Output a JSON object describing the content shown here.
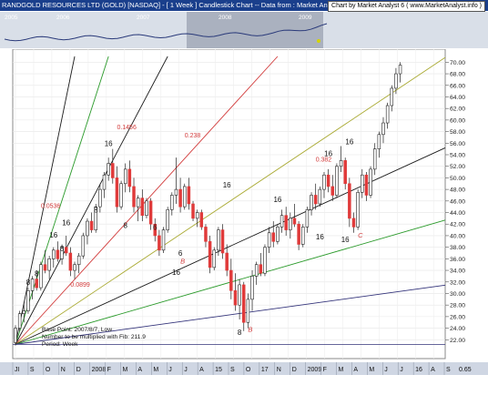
{
  "header": {
    "title": "RANDGOLD RESOURCES LTD (GOLD) [NASDAQ] - [ 1 Week ] Candlestick Chart -- Data from : Market Analyst",
    "credit": "Chart by Market Analyst 6 ( www.MarketAnalyst.info )"
  },
  "overview": {
    "year_labels": [
      "2005",
      "2006",
      "2007",
      "2008",
      "2009"
    ]
  },
  "colors": {
    "up_candle": "#ffffff",
    "down_candle": "#e03a3a",
    "fan_dark": "#1a1a1a",
    "fan_green": "#2a9a2a",
    "fan_red": "#d23a3a",
    "fan_olive": "#aaaa33",
    "fan_blue": "#33337a",
    "title_bar": "#1a3f8c"
  },
  "chart_data": {
    "type": "candlestick",
    "title": "",
    "y_axis": {
      "min": 20,
      "max": 71,
      "ticks": [
        "70.00",
        "68.00",
        "66.00",
        "64.00",
        "62.00",
        "60.00",
        "58.00",
        "56.00",
        "54.00",
        "52.00",
        "50.00",
        "48.00",
        "46.00",
        "44.00",
        "42.00",
        "40.00",
        "38.00",
        "36.00",
        "34.00",
        "32.00",
        "30.00",
        "28.00",
        "26.00",
        "24.00",
        "22.00"
      ]
    },
    "x_axis": {
      "labels": [
        "JI",
        "S",
        "O",
        "N",
        "D",
        "2008",
        "F",
        "M",
        "A",
        "M",
        "J",
        "J",
        "A",
        "15",
        "S",
        "O",
        "17",
        "N",
        "D",
        "2009",
        "F",
        "M",
        "A",
        "M",
        "J",
        "J",
        "16",
        "A",
        "S"
      ],
      "right_value": "0.65"
    },
    "weeks": 102,
    "fan_base": {
      "week": 0,
      "price": 21.2
    },
    "fan_lines": [
      {
        "ratio": "1/8",
        "color_key": "fan_dark",
        "end_price": 71,
        "end_week": 14
      },
      {
        "ratio": "1/4",
        "color_key": "fan_green",
        "end_price": 71,
        "end_week": 22
      },
      {
        "ratio": "1/3",
        "color_key": "fan_dark",
        "end_price": 71,
        "end_week": 36
      },
      {
        "ratio": "1/2",
        "color_key": "fan_red",
        "end_price": 71,
        "end_week": 62
      },
      {
        "ratio": "1/1",
        "color_key": "fan_olive",
        "end_price": 71,
        "end_week": 102
      },
      {
        "ratio": "2/1",
        "color_key": "fan_dark",
        "end_price": 62,
        "end_week": 122
      },
      {
        "ratio": "3/1",
        "color_key": "fan_green",
        "end_price": 47,
        "end_week": 122
      },
      {
        "ratio": "4/1",
        "color_key": "fan_blue",
        "end_price": 33.5,
        "end_week": 122
      }
    ],
    "candles": [
      {
        "o": 21.5,
        "h": 24.5,
        "l": 21.0,
        "c": 24.0
      },
      {
        "o": 24.0,
        "h": 27.0,
        "l": 23.5,
        "c": 26.5
      },
      {
        "o": 26.5,
        "h": 28.5,
        "l": 25.0,
        "c": 27.0
      },
      {
        "o": 27.0,
        "h": 31.0,
        "l": 26.5,
        "c": 30.5
      },
      {
        "o": 30.5,
        "h": 33.0,
        "l": 29.0,
        "c": 32.5
      },
      {
        "o": 32.5,
        "h": 34.0,
        "l": 30.5,
        "c": 31.0
      },
      {
        "o": 31.0,
        "h": 35.5,
        "l": 30.5,
        "c": 35.0
      },
      {
        "o": 35.0,
        "h": 37.5,
        "l": 33.5,
        "c": 34.0
      },
      {
        "o": 34.0,
        "h": 36.5,
        "l": 32.5,
        "c": 36.0
      },
      {
        "o": 36.0,
        "h": 38.0,
        "l": 34.5,
        "c": 37.5
      },
      {
        "o": 37.5,
        "h": 39.0,
        "l": 35.5,
        "c": 36.0
      },
      {
        "o": 36.0,
        "h": 38.5,
        "l": 35.0,
        "c": 38.0
      },
      {
        "o": 38.0,
        "h": 40.0,
        "l": 36.5,
        "c": 37.0
      },
      {
        "o": 37.0,
        "h": 38.0,
        "l": 33.0,
        "c": 34.0
      },
      {
        "o": 34.0,
        "h": 35.5,
        "l": 32.5,
        "c": 35.0
      },
      {
        "o": 35.0,
        "h": 37.0,
        "l": 33.5,
        "c": 36.5
      },
      {
        "o": 36.5,
        "h": 40.5,
        "l": 36.0,
        "c": 40.0
      },
      {
        "o": 40.0,
        "h": 43.0,
        "l": 38.5,
        "c": 42.5
      },
      {
        "o": 42.5,
        "h": 44.0,
        "l": 40.5,
        "c": 41.0
      },
      {
        "o": 41.0,
        "h": 45.5,
        "l": 40.5,
        "c": 45.0
      },
      {
        "o": 45.0,
        "h": 49.0,
        "l": 44.0,
        "c": 48.0
      },
      {
        "o": 48.0,
        "h": 51.0,
        "l": 46.5,
        "c": 50.5
      },
      {
        "o": 50.5,
        "h": 53.5,
        "l": 49.5,
        "c": 52.5
      },
      {
        "o": 52.5,
        "h": 55.0,
        "l": 49.0,
        "c": 50.0
      },
      {
        "o": 50.0,
        "h": 52.0,
        "l": 44.0,
        "c": 45.0
      },
      {
        "o": 45.0,
        "h": 49.5,
        "l": 44.5,
        "c": 49.0
      },
      {
        "o": 49.0,
        "h": 52.5,
        "l": 47.5,
        "c": 51.5
      },
      {
        "o": 51.5,
        "h": 53.0,
        "l": 47.5,
        "c": 48.5
      },
      {
        "o": 48.5,
        "h": 50.0,
        "l": 44.0,
        "c": 45.0
      },
      {
        "o": 45.0,
        "h": 47.0,
        "l": 42.5,
        "c": 46.5
      },
      {
        "o": 46.5,
        "h": 48.0,
        "l": 42.5,
        "c": 43.5
      },
      {
        "o": 43.5,
        "h": 46.5,
        "l": 43.0,
        "c": 46.0
      },
      {
        "o": 46.0,
        "h": 46.5,
        "l": 41.0,
        "c": 42.0
      },
      {
        "o": 42.0,
        "h": 43.0,
        "l": 39.0,
        "c": 40.0
      },
      {
        "o": 40.0,
        "h": 41.0,
        "l": 36.5,
        "c": 37.5
      },
      {
        "o": 37.5,
        "h": 41.5,
        "l": 37.0,
        "c": 41.0
      },
      {
        "o": 41.0,
        "h": 45.0,
        "l": 40.5,
        "c": 44.5
      },
      {
        "o": 44.5,
        "h": 47.5,
        "l": 43.5,
        "c": 47.0
      },
      {
        "o": 47.0,
        "h": 53.5,
        "l": 45.5,
        "c": 48.0
      },
      {
        "o": 48.0,
        "h": 50.0,
        "l": 44.0,
        "c": 45.0
      },
      {
        "o": 45.0,
        "h": 49.0,
        "l": 44.5,
        "c": 48.5
      },
      {
        "o": 48.5,
        "h": 50.0,
        "l": 44.5,
        "c": 45.5
      },
      {
        "o": 45.5,
        "h": 46.0,
        "l": 42.5,
        "c": 43.0
      },
      {
        "o": 43.0,
        "h": 44.5,
        "l": 41.5,
        "c": 44.0
      },
      {
        "o": 44.0,
        "h": 44.5,
        "l": 41.0,
        "c": 41.5
      },
      {
        "o": 41.5,
        "h": 42.0,
        "l": 38.0,
        "c": 39.0
      },
      {
        "o": 39.0,
        "h": 40.0,
        "l": 33.5,
        "c": 34.5
      },
      {
        "o": 34.5,
        "h": 38.0,
        "l": 34.0,
        "c": 37.5
      },
      {
        "o": 37.5,
        "h": 41.5,
        "l": 36.5,
        "c": 41.0
      },
      {
        "o": 41.0,
        "h": 42.0,
        "l": 36.0,
        "c": 37.0
      },
      {
        "o": 37.0,
        "h": 38.5,
        "l": 33.0,
        "c": 34.0
      },
      {
        "o": 34.0,
        "h": 36.0,
        "l": 29.0,
        "c": 30.5
      },
      {
        "o": 30.5,
        "h": 33.5,
        "l": 27.0,
        "c": 28.0
      },
      {
        "o": 28.0,
        "h": 32.5,
        "l": 25.5,
        "c": 31.5
      },
      {
        "o": 31.5,
        "h": 32.0,
        "l": 23.5,
        "c": 25.0
      },
      {
        "o": 25.0,
        "h": 30.0,
        "l": 24.0,
        "c": 29.0
      },
      {
        "o": 29.0,
        "h": 34.0,
        "l": 27.0,
        "c": 33.0
      },
      {
        "o": 33.0,
        "h": 35.5,
        "l": 31.5,
        "c": 35.0
      },
      {
        "o": 35.0,
        "h": 37.0,
        "l": 33.0,
        "c": 33.5
      },
      {
        "o": 33.5,
        "h": 38.5,
        "l": 33.0,
        "c": 38.0
      },
      {
        "o": 38.0,
        "h": 41.5,
        "l": 37.0,
        "c": 40.5
      },
      {
        "o": 40.5,
        "h": 42.5,
        "l": 38.0,
        "c": 39.0
      },
      {
        "o": 39.0,
        "h": 42.0,
        "l": 38.5,
        "c": 41.5
      },
      {
        "o": 41.5,
        "h": 44.5,
        "l": 40.5,
        "c": 43.5
      },
      {
        "o": 43.5,
        "h": 45.0,
        "l": 40.0,
        "c": 41.0
      },
      {
        "o": 41.0,
        "h": 44.0,
        "l": 39.5,
        "c": 43.0
      },
      {
        "o": 43.0,
        "h": 45.5,
        "l": 41.5,
        "c": 42.0
      },
      {
        "o": 42.0,
        "h": 42.5,
        "l": 37.5,
        "c": 38.5
      },
      {
        "o": 38.5,
        "h": 42.0,
        "l": 38.0,
        "c": 41.5
      },
      {
        "o": 41.5,
        "h": 45.0,
        "l": 40.5,
        "c": 44.5
      },
      {
        "o": 44.5,
        "h": 47.5,
        "l": 43.5,
        "c": 47.0
      },
      {
        "o": 47.0,
        "h": 49.0,
        "l": 44.5,
        "c": 45.5
      },
      {
        "o": 45.5,
        "h": 48.5,
        "l": 45.0,
        "c": 48.0
      },
      {
        "o": 48.0,
        "h": 51.0,
        "l": 46.5,
        "c": 50.5
      },
      {
        "o": 50.5,
        "h": 51.5,
        "l": 47.5,
        "c": 48.5
      },
      {
        "o": 48.5,
        "h": 50.5,
        "l": 46.0,
        "c": 47.0
      },
      {
        "o": 47.0,
        "h": 52.5,
        "l": 46.5,
        "c": 52.0
      },
      {
        "o": 52.0,
        "h": 55.5,
        "l": 51.0,
        "c": 53.0
      },
      {
        "o": 53.0,
        "h": 53.5,
        "l": 48.0,
        "c": 49.0
      },
      {
        "o": 49.0,
        "h": 50.0,
        "l": 41.5,
        "c": 43.0
      },
      {
        "o": 43.0,
        "h": 44.0,
        "l": 40.5,
        "c": 41.5
      },
      {
        "o": 41.5,
        "h": 48.0,
        "l": 41.0,
        "c": 47.5
      },
      {
        "o": 47.5,
        "h": 51.5,
        "l": 46.5,
        "c": 50.5
      },
      {
        "o": 50.5,
        "h": 51.0,
        "l": 46.0,
        "c": 47.0
      },
      {
        "o": 47.0,
        "h": 52.0,
        "l": 46.5,
        "c": 51.5
      },
      {
        "o": 51.5,
        "h": 56.0,
        "l": 50.5,
        "c": 55.0
      },
      {
        "o": 55.0,
        "h": 58.0,
        "l": 53.5,
        "c": 57.5
      },
      {
        "o": 57.5,
        "h": 60.5,
        "l": 56.0,
        "c": 59.5
      },
      {
        "o": 59.5,
        "h": 63.0,
        "l": 58.5,
        "c": 62.5
      },
      {
        "o": 62.5,
        "h": 66.0,
        "l": 61.5,
        "c": 65.5
      },
      {
        "o": 65.5,
        "h": 69.0,
        "l": 64.5,
        "c": 68.0
      },
      {
        "o": 68.0,
        "h": 70.0,
        "l": 66.5,
        "c": 69.5
      }
    ],
    "candle_count_note": "",
    "annotations": {
      "fan_ratios": [
        {
          "text": "0.0536",
          "week": 6,
          "price": 44.8,
          "color_key": "fan_red"
        },
        {
          "text": "0.1456",
          "week": 24,
          "price": 58.4,
          "color_key": "fan_red"
        },
        {
          "text": "0.238",
          "week": 40,
          "price": 57.0,
          "color_key": "fan_red"
        },
        {
          "text": "0.382",
          "week": 71,
          "price": 52.8,
          "color_key": "fan_red"
        },
        {
          "text": "0.0899",
          "week": 13,
          "price": 31.2,
          "color_key": "fan_red"
        }
      ],
      "counts": [
        {
          "text": "8",
          "week": 3,
          "price": 31.5
        },
        {
          "text": "8",
          "week": 5,
          "price": 33.0
        },
        {
          "text": "16",
          "week": 9,
          "price": 39.7
        },
        {
          "text": "16",
          "week": 12,
          "price": 41.8
        },
        {
          "text": "8",
          "week": 11,
          "price": 37.3
        },
        {
          "text": "8",
          "week": 19,
          "price": 44.0
        },
        {
          "text": "16",
          "week": 22,
          "price": 55.5
        },
        {
          "text": "8",
          "week": 26,
          "price": 41.3
        },
        {
          "text": "6",
          "week": 33,
          "price": 41.0
        },
        {
          "text": "6",
          "week": 39,
          "price": 36.5
        },
        {
          "text": "16",
          "week": 38,
          "price": 33.2
        },
        {
          "text": "16",
          "week": 50,
          "price": 48.3
        },
        {
          "text": "16",
          "week": 62,
          "price": 45.8
        },
        {
          "text": "16",
          "week": 74,
          "price": 53.8
        },
        {
          "text": "16",
          "week": 72,
          "price": 39.4
        },
        {
          "text": "16",
          "week": 79,
          "price": 55.8
        },
        {
          "text": "16",
          "week": 78,
          "price": 38.9
        },
        {
          "text": "8",
          "week": 53,
          "price": 22.8
        }
      ],
      "markers": [
        {
          "text": "B",
          "week": 39,
          "price": 35.2,
          "color_key": "fan_red"
        },
        {
          "text": "B",
          "week": 55,
          "price": 23.4,
          "color_key": "fan_red"
        },
        {
          "text": "C",
          "week": 81,
          "price": 39.7,
          "color_key": "fan_red"
        }
      ]
    },
    "info_box": [
      "Base Point: 2007/8/7, Low",
      "Number to be multiplied with Fib: 211.9",
      "Period: Week"
    ],
    "grid": true
  }
}
